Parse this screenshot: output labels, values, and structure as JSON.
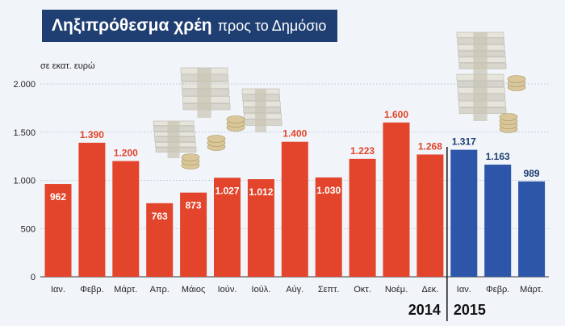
{
  "title_bold": "Ληξιπρόθεσμα χρέη",
  "title_rest": "προς το Δημόσιο",
  "unit_label": "σε εκατ. ευρώ",
  "colors": {
    "bar_2014": "#e2452b",
    "bar_2015": "#2d55a8",
    "label_2014": "#e2452b",
    "label_2015": "#1f3e72",
    "title_bg": "#1f3e72"
  },
  "chart_data": {
    "type": "bar",
    "ylim": [
      0,
      2000
    ],
    "yticks": [
      0,
      500,
      1000,
      1500,
      2000
    ],
    "ytick_labels": [
      "0",
      "500",
      "1.000",
      "1.500",
      "2.000"
    ],
    "categories": [
      "Ιαν.",
      "Φεβρ.",
      "Μάρτ.",
      "Απρ.",
      "Μάιος",
      "Ιούν.",
      "Ιούλ.",
      "Αύγ.",
      "Σεπτ.",
      "Οκτ.",
      "Νοέμ.",
      "Δεκ.",
      "Ιαν.",
      "Φεβρ.",
      "Μάρτ."
    ],
    "values": [
      962,
      1390,
      1200,
      763,
      873,
      1027,
      1012,
      1400,
      1030,
      1223,
      1600,
      1268,
      1317,
      1163,
      989
    ],
    "value_labels": [
      "962",
      "1.390",
      "1.200",
      "763",
      "873",
      "1.027",
      "1.012",
      "1.400",
      "1.030",
      "1.223",
      "1.600",
      "1.268",
      "1.317",
      "1.163",
      "989"
    ],
    "years": [
      2014,
      2014,
      2014,
      2014,
      2014,
      2014,
      2014,
      2014,
      2014,
      2014,
      2014,
      2014,
      2015,
      2015,
      2015
    ],
    "year_labels": [
      "2014",
      "2015"
    ],
    "grid": true,
    "legend": "none"
  }
}
